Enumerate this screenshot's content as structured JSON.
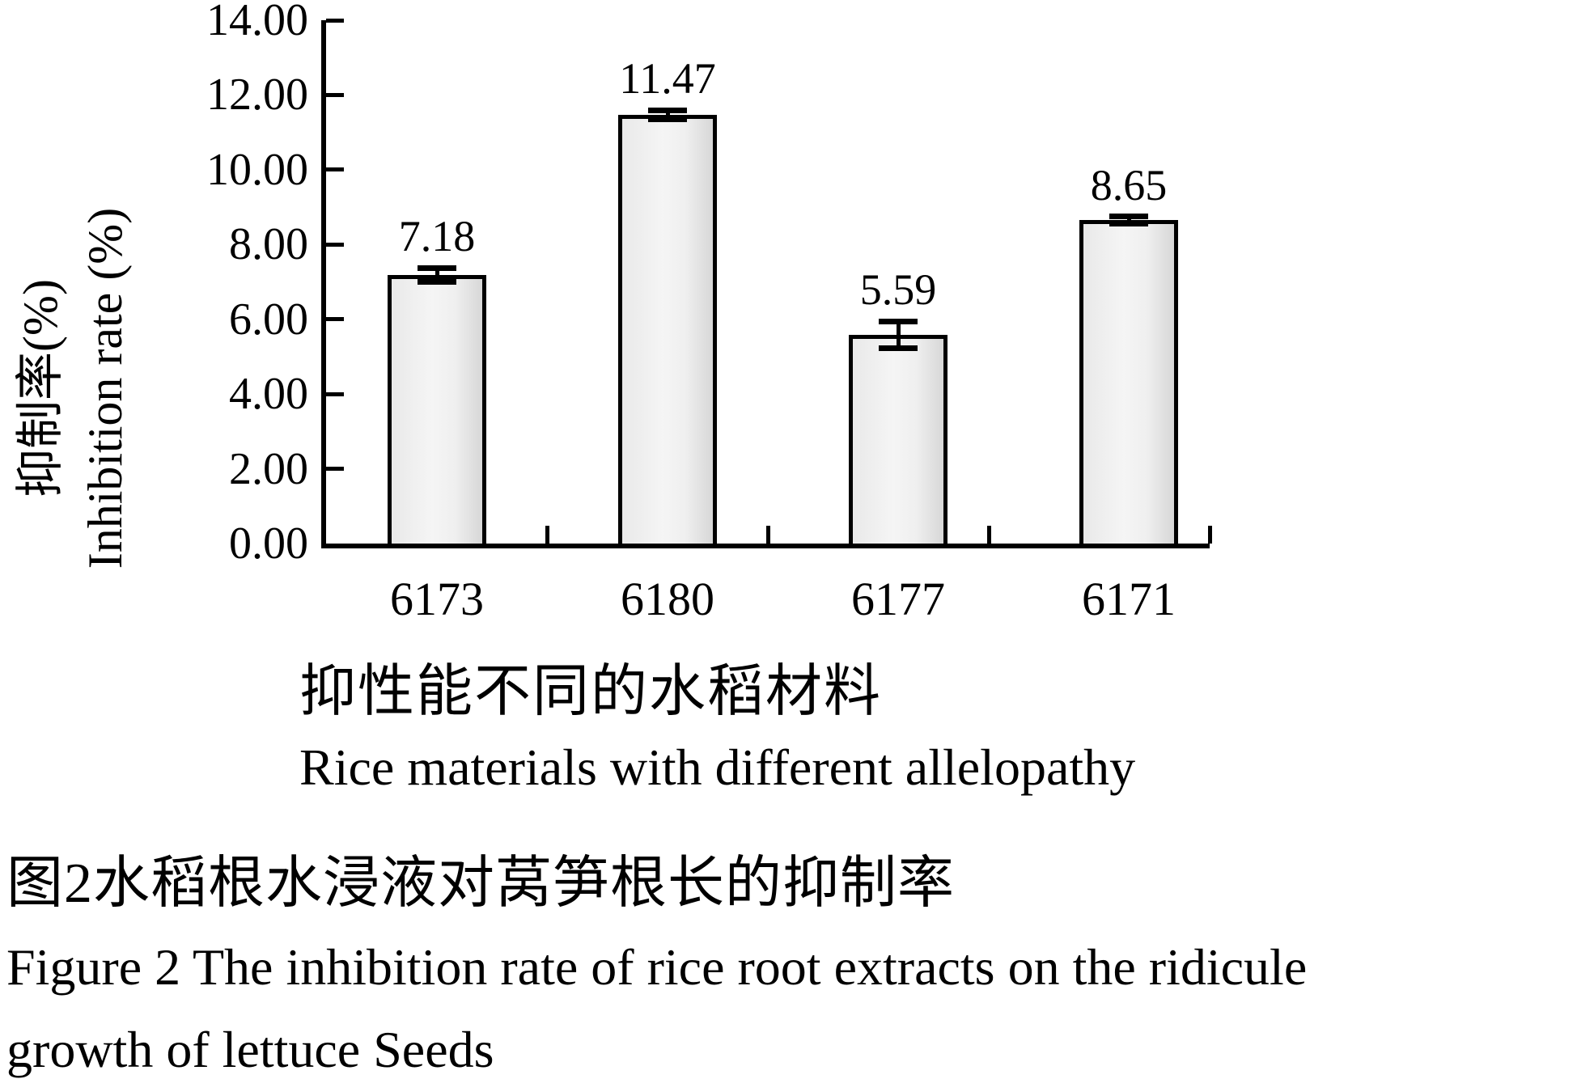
{
  "chart_data": {
    "type": "bar",
    "categories": [
      "6173",
      "6180",
      "6177",
      "6171"
    ],
    "values": [
      7.18,
      11.47,
      5.59,
      8.65
    ],
    "errors": [
      0.19,
      0.12,
      0.36,
      0.1
    ],
    "value_labels": [
      "7.18",
      "11.47",
      "5.59",
      "8.65"
    ],
    "yticks": [
      "0.00",
      "2.00",
      "4.00",
      "6.00",
      "8.00",
      "10.00",
      "12.00",
      "14.00"
    ],
    "ylim": [
      0,
      14
    ],
    "ytick_step": 2,
    "grid": "off",
    "legend": "none",
    "ylabel_zh": "抑制率(%)",
    "ylabel_en": "Inhibition rate (%)",
    "xlabel_zh": "抑性能不同的水稻材料",
    "xlabel_en": "Rice materials with different allelopathy",
    "bar_fill_light": "#f5f5f5",
    "bar_fill_dark": "#d7d7d7",
    "bar_border_color": "#000000",
    "axis_color": "#000000",
    "text_color": "#000000",
    "background_color": "#ffffff"
  },
  "caption": {
    "zh": "图2水稻根水浸液对莴笋根长的抑制率",
    "en_line1": "Figure 2 The inhibition rate of rice root extracts on the ridicule",
    "en_line2": "growth of lettuce Seeds"
  }
}
